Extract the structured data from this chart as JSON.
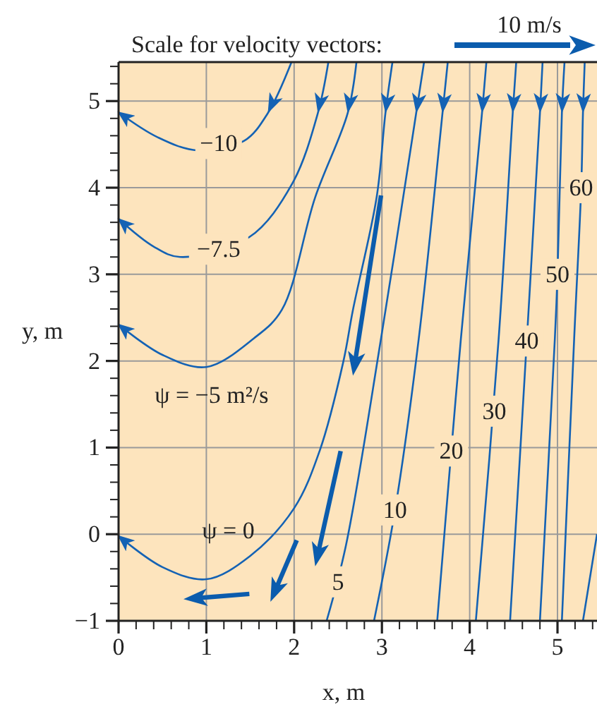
{
  "chart_data": {
    "type": "line",
    "xlabel": "x, m",
    "ylabel": "y, m",
    "xlim": [
      0,
      5.45
    ],
    "ylim": [
      -1,
      5.45
    ],
    "xticks": [
      0,
      {
        "value": 0.2,
        "label": null
      },
      {
        "value": 0.4,
        "label": null
      },
      {
        "value": 0.6,
        "label": null
      },
      {
        "value": 0.8,
        "label": null
      },
      1,
      {
        "value": 1.2,
        "label": null
      },
      {
        "value": 1.4,
        "label": null
      },
      {
        "value": 1.6,
        "label": null
      },
      {
        "value": 1.8,
        "label": null
      },
      2,
      {
        "value": 2.2,
        "label": null
      },
      {
        "value": 2.4,
        "label": null
      },
      {
        "value": 2.6,
        "label": null
      },
      {
        "value": 2.8,
        "label": null
      },
      3,
      {
        "value": 3.2,
        "label": null
      },
      {
        "value": 3.4,
        "label": null
      },
      {
        "value": 3.6,
        "label": null
      },
      {
        "value": 3.8,
        "label": null
      },
      4,
      {
        "value": 4.2,
        "label": null
      },
      {
        "value": 4.4,
        "label": null
      },
      {
        "value": 4.6,
        "label": null
      },
      {
        "value": 4.8,
        "label": null
      },
      5,
      {
        "value": 5.2,
        "label": null
      },
      {
        "value": 5.4,
        "label": null
      }
    ],
    "yticks": [
      {
        "value": -1,
        "label": "−1"
      },
      {
        "value": -0.8,
        "label": null
      },
      {
        "value": -0.6,
        "label": null
      },
      {
        "value": -0.4,
        "label": null
      },
      {
        "value": -0.2,
        "label": null
      },
      0,
      {
        "value": 0.2,
        "label": null
      },
      {
        "value": 0.4,
        "label": null
      },
      {
        "value": 0.6,
        "label": null
      },
      {
        "value": 0.8,
        "label": null
      },
      1,
      {
        "value": 1.2,
        "label": null
      },
      {
        "value": 1.4,
        "label": null
      },
      {
        "value": 1.6,
        "label": null
      },
      {
        "value": 1.8,
        "label": null
      },
      2,
      {
        "value": 2.2,
        "label": null
      },
      {
        "value": 2.4,
        "label": null
      },
      {
        "value": 2.6,
        "label": null
      },
      {
        "value": 2.8,
        "label": null
      },
      3,
      {
        "value": 3.2,
        "label": null
      },
      {
        "value": 3.4,
        "label": null
      },
      {
        "value": 3.6,
        "label": null
      },
      {
        "value": 3.8,
        "label": null
      },
      4,
      {
        "value": 4.2,
        "label": null
      },
      {
        "value": 4.4,
        "label": null
      },
      {
        "value": 4.6,
        "label": null
      },
      {
        "value": 4.8,
        "label": null
      },
      5,
      {
        "value": 5.2,
        "label": null
      },
      {
        "value": 5.4,
        "label": null
      }
    ],
    "grid": true,
    "marker": "none",
    "line_style": "solid",
    "series": [
      {
        "color": "#1462b4",
        "x": [
          1.97,
          1.7,
          1.43,
          0.9,
          0.45,
          0
        ],
        "values": [
          5.45,
          4.86,
          4.54,
          4.43,
          4.58,
          4.87
        ]
      },
      {
        "color": "#1462b4",
        "x": [
          2.39,
          2.27,
          1.98,
          1.49,
          0.7,
          0.4,
          0
        ],
        "values": [
          5.45,
          4.86,
          4.05,
          3.43,
          3.2,
          3.32,
          3.64
        ]
      },
      {
        "color": "#1462b4",
        "x": [
          2.71,
          2.61,
          2.24,
          1.86,
          1.54,
          1.0,
          0.5,
          0
        ],
        "values": [
          5.45,
          4.86,
          3.89,
          2.59,
          2.26,
          1.93,
          2.07,
          2.42
        ]
      },
      {
        "color": "#1462b4",
        "x": [
          3.12,
          3.04,
          2.94,
          2.67,
          2.56,
          2.29,
          2.0,
          1.5,
          1.0,
          0.5,
          0
        ],
        "values": [
          5.45,
          4.86,
          3.89,
          2.59,
          1.99,
          0.96,
          0.3,
          -0.25,
          -0.52,
          -0.38,
          -0.02
        ]
      },
      {
        "color": "#1462b4",
        "x": [
          3.48,
          3.39,
          2.99,
          2.59,
          2.37
        ],
        "values": [
          5.45,
          4.86,
          2.26,
          -0.13,
          -1
        ]
      },
      {
        "color": "#1462b4",
        "x": [
          3.75,
          3.69,
          3.42,
          3.15,
          2.91
        ],
        "values": [
          5.45,
          4.86,
          2.26,
          0.28,
          -1
        ]
      },
      {
        "color": "#1462b4",
        "x": [
          4.19,
          4.14,
          3.9,
          3.79,
          3.63
        ],
        "values": [
          5.45,
          4.86,
          2.26,
          0.96,
          -1
        ]
      },
      {
        "color": "#1462b4",
        "x": [
          4.53,
          4.49,
          4.33,
          4.07
        ],
        "values": [
          5.45,
          4.86,
          2.26,
          -1
        ]
      },
      {
        "color": "#1462b4",
        "x": [
          4.83,
          4.8,
          4.65,
          4.46
        ],
        "values": [
          5.45,
          4.86,
          2.23,
          -1
        ]
      },
      {
        "color": "#1462b4",
        "x": [
          5.08,
          5.05,
          5.0,
          4.97,
          4.8
        ],
        "values": [
          5.45,
          4.86,
          3.0,
          2.26,
          -1
        ]
      },
      {
        "color": "#1462b4",
        "x": [
          5.31,
          5.29,
          5.27,
          5.19,
          5.05
        ],
        "values": [
          5.45,
          4.86,
          4.0,
          2.26,
          -1
        ]
      },
      {
        "color": "#1462b4",
        "x": [
          5.45,
          5.29
        ],
        "values": [
          0.0,
          -1
        ]
      }
    ],
    "annotations": [
      "Scale for velocity vectors:",
      "10 m/s",
      "ψ = −5 m²/s",
      "ψ = 0",
      {
        "text": "−10",
        "x": 1.14,
        "y": 4.51
      },
      {
        "text": "−7.5",
        "x": 1.14,
        "y": 3.29
      },
      {
        "text": "5",
        "x": 2.5,
        "y": -0.55
      },
      {
        "text": "10",
        "x": 3.15,
        "y": 0.28
      },
      {
        "text": "20",
        "x": 3.79,
        "y": 0.96
      },
      {
        "text": "30",
        "x": 4.28,
        "y": 1.42
      },
      {
        "text": "40",
        "x": 4.65,
        "y": 2.23
      },
      {
        "text": "50",
        "x": 5.0,
        "y": 3.0
      },
      {
        "text": "60",
        "x": 5.27,
        "y": 4.0
      }
    ]
  }
}
